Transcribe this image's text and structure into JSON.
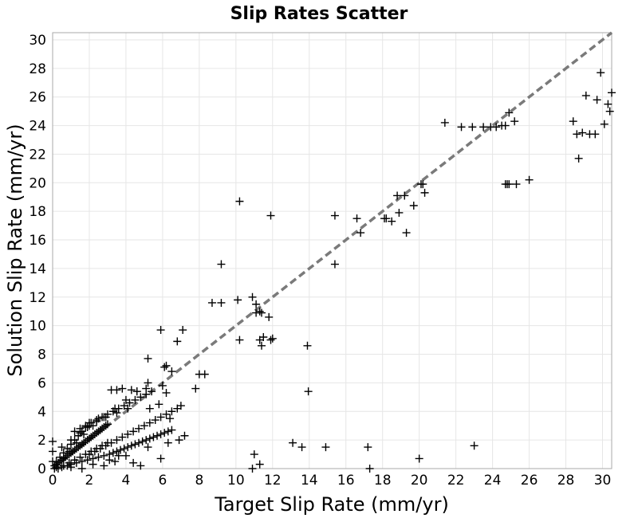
{
  "chart_data": {
    "type": "scatter",
    "title": "Slip Rates Scatter",
    "xlabel": "Target Slip Rate (mm/yr)",
    "ylabel": "Solution Slip Rate (mm/yr)",
    "xlim": [
      0,
      30.5
    ],
    "ylim": [
      0,
      30.5
    ],
    "xticks": [
      0,
      2,
      4,
      6,
      8,
      10,
      12,
      14,
      16,
      18,
      20,
      22,
      24,
      26,
      28,
      30
    ],
    "yticks": [
      0,
      2,
      4,
      6,
      8,
      10,
      12,
      14,
      16,
      18,
      20,
      22,
      24,
      26,
      28,
      30
    ],
    "grid": true,
    "marker": "plus",
    "reference_line": {
      "style": "dashed",
      "from": [
        0,
        0
      ],
      "to": [
        30.5,
        30.5
      ]
    },
    "colors": {
      "points": "#000000",
      "reference_line": "#7a7a7a",
      "grid": "#e6e6e6",
      "frame": "#aaaaaa"
    },
    "x": [
      0.1,
      0.2,
      0.3,
      0.4,
      0.5,
      0.6,
      0.7,
      0.8,
      0.9,
      1.0,
      1.1,
      1.2,
      1.3,
      1.4,
      1.5,
      1.6,
      1.7,
      1.8,
      1.9,
      2.0,
      2.1,
      2.2,
      2.3,
      2.4,
      2.5,
      2.6,
      2.7,
      2.8,
      2.9,
      3.0,
      0.3,
      0.6,
      0.9,
      1.2,
      1.5,
      1.8,
      2.1,
      2.4,
      2.7,
      3.0,
      0.5,
      1.0,
      1.5,
      2.0,
      2.5,
      0.2,
      0.4,
      0.6,
      0.8,
      1.0,
      1.2,
      1.4,
      1.6,
      1.8,
      2.0,
      0.0,
      0.0,
      0.0,
      0.1,
      0.2,
      0.5,
      0.8,
      1.0,
      1.3,
      1.6,
      1.9,
      2.2,
      2.5,
      2.8,
      3.1,
      3.3,
      3.5,
      3.7,
      3.9,
      4.1,
      4.3,
      4.5,
      4.7,
      4.9,
      5.1,
      5.3,
      5.5,
      5.7,
      5.9,
      6.1,
      6.3,
      6.5,
      2.0,
      2.3,
      2.6,
      2.9,
      3.2,
      3.5,
      3.8,
      4.1,
      4.4,
      4.7,
      5.0,
      5.3,
      5.6,
      5.9,
      6.2,
      6.5,
      6.8,
      7.0,
      1.2,
      1.5,
      1.8,
      2.1,
      2.4,
      2.7,
      3.0,
      3.3,
      3.6,
      3.9,
      4.2,
      4.5,
      4.8,
      5.1,
      5.4,
      0.6,
      0.9,
      1.3,
      1.7,
      2.2,
      2.8,
      3.4,
      4.0,
      4.6,
      5.2,
      5.8,
      6.4,
      1.0,
      1.6,
      2.2,
      2.8,
      3.4,
      4.0,
      1.9,
      2.4,
      2.9,
      3.5,
      4.1,
      3.2,
      3.5,
      3.8,
      4.3,
      4.6,
      5.1,
      5.3,
      6.0,
      6.2,
      6.5,
      3.1,
      3.6,
      4.4,
      4.8,
      5.2,
      5.9,
      6.3,
      6.9,
      7.2,
      5.9,
      6.1,
      6.8,
      7.1,
      5.2,
      6.2,
      7.8,
      8.0,
      8.3,
      8.7,
      9.2,
      10.1,
      10.9,
      11.1,
      11.5,
      11.9,
      11.1,
      11.3,
      11.4,
      11.8,
      12.0,
      11.3,
      11.4,
      13.9,
      13.95,
      10.2,
      9.2,
      11.9,
      15.4,
      15.4,
      16.6,
      16.8,
      18.1,
      18.2,
      18.5,
      18.8,
      18.9,
      19.2,
      19.3,
      19.7,
      20.1,
      20.3,
      20.2,
      21.4,
      22.3,
      22.9,
      23.5,
      23.9,
      24.2,
      24.5,
      24.7,
      24.9,
      25.2,
      24.8,
      24.7,
      24.9,
      25.3,
      26.0,
      28.4,
      28.6,
      28.7,
      28.9,
      29.1,
      29.3,
      29.6,
      29.7,
      29.9,
      30.1,
      30.3,
      30.4,
      30.5,
      10.2,
      11.0,
      11.3,
      13.1,
      13.6,
      14.9,
      17.2,
      17.3,
      20.0,
      23.0,
      10.9
    ],
    "y": [
      0.2,
      0.3,
      0.4,
      0.5,
      0.6,
      0.7,
      0.8,
      0.9,
      1.0,
      1.1,
      1.2,
      1.3,
      1.4,
      1.5,
      1.6,
      1.7,
      1.8,
      1.9,
      2.0,
      2.1,
      2.2,
      2.3,
      2.4,
      2.5,
      2.6,
      2.7,
      2.8,
      2.9,
      3.0,
      3.1,
      0.0,
      0.2,
      0.4,
      0.6,
      0.8,
      1.0,
      1.2,
      1.4,
      1.6,
      1.8,
      1.5,
      2.0,
      2.5,
      3.0,
      3.5,
      0.5,
      0.8,
      1.1,
      1.4,
      1.7,
      2.0,
      2.3,
      2.6,
      2.9,
      3.2,
      0.5,
      1.2,
      1.9,
      0.0,
      0.1,
      0.1,
      0.2,
      0.3,
      0.4,
      0.5,
      0.6,
      0.7,
      0.8,
      0.9,
      1.0,
      1.1,
      1.2,
      1.3,
      1.4,
      1.5,
      1.6,
      1.7,
      1.8,
      1.9,
      2.0,
      2.1,
      2.2,
      2.3,
      2.4,
      2.5,
      2.6,
      2.7,
      1.0,
      1.2,
      1.4,
      1.6,
      1.8,
      2.0,
      2.2,
      2.4,
      2.6,
      2.8,
      3.0,
      3.2,
      3.4,
      3.6,
      3.8,
      4.0,
      4.2,
      4.4,
      2.6,
      2.8,
      3.0,
      3.2,
      3.4,
      3.6,
      3.8,
      4.0,
      4.2,
      4.4,
      4.6,
      4.8,
      5.0,
      5.2,
      5.4,
      0.8,
      1.2,
      1.8,
      2.4,
      3.0,
      3.6,
      4.2,
      4.8,
      5.4,
      6.0,
      4.5,
      3.5,
      0.1,
      0.0,
      0.3,
      0.2,
      0.5,
      0.9,
      2.9,
      3.3,
      3.6,
      3.9,
      4.2,
      5.5,
      5.5,
      5.6,
      5.5,
      5.4,
      5.6,
      4.2,
      5.8,
      7.2,
      6.8,
      0.6,
      0.9,
      0.4,
      0.2,
      1.5,
      0.7,
      1.8,
      2.0,
      2.3,
      9.7,
      7.1,
      8.9,
      9.7,
      7.7,
      5.3,
      5.6,
      6.6,
      6.6,
      11.6,
      11.6,
      11.8,
      12.0,
      11.5,
      9.2,
      9.0,
      10.9,
      11.0,
      10.9,
      10.6,
      9.1,
      9.0,
      8.6,
      8.6,
      5.4,
      9.0,
      14.3,
      17.7,
      14.3,
      17.7,
      17.5,
      16.5,
      17.5,
      17.5,
      17.3,
      19.1,
      17.9,
      19.1,
      16.5,
      18.4,
      19.9,
      19.3,
      19.9,
      24.2,
      23.9,
      23.9,
      23.9,
      23.9,
      23.9,
      24.0,
      24.0,
      24.9,
      24.3,
      19.9,
      19.9,
      19.9,
      19.9,
      20.2,
      24.3,
      23.4,
      21.7,
      23.5,
      26.1,
      23.4,
      23.4,
      25.8,
      27.7,
      24.1,
      25.5,
      25.0,
      26.3,
      18.7,
      1.0,
      0.3,
      1.8,
      1.5,
      1.5,
      1.5,
      0.0,
      0.7,
      1.6,
      0.0
    ]
  }
}
